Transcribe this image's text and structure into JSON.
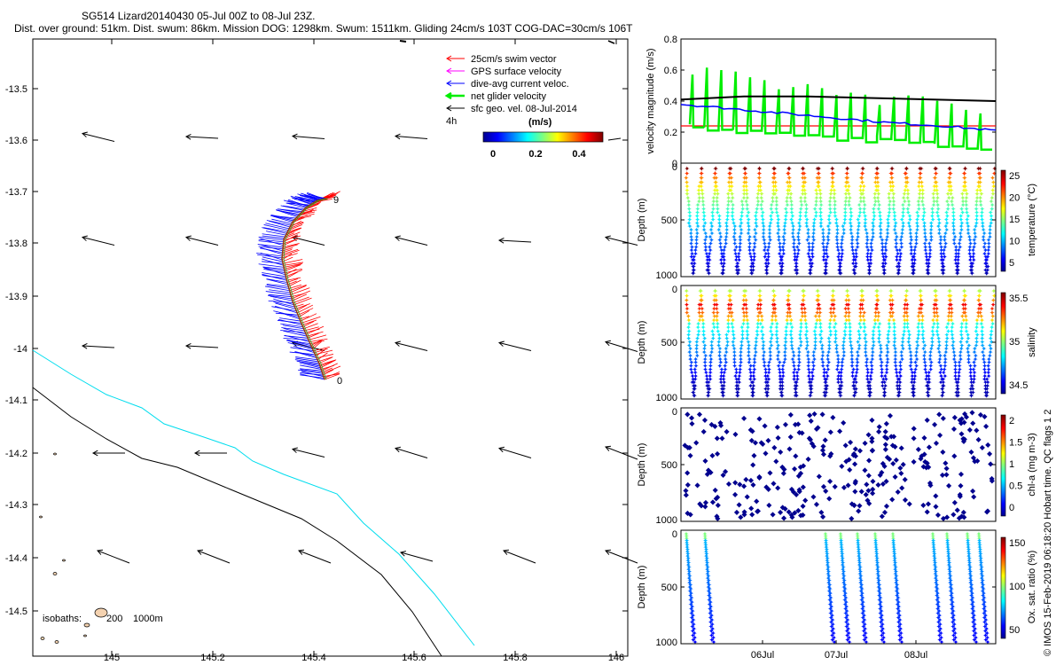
{
  "title_line1": "SG514 Lizard20140430 05-Jul 00Z to 08-Jul 23Z.",
  "title_line2": "Dist. over ground: 51km. Dist. swum: 86km. Mission DOG: 1298km. Swum: 1511km. Gliding 24cm/s 103T COG-DAC=30cm/s 106T",
  "copyright": "© IMOS 15-Feb-2019 06:18:20 Hobart time. QC flags 1  2",
  "map": {
    "xticks": [
      "145",
      "145.2",
      "145.4",
      "145.6",
      "145.8",
      "146"
    ],
    "yticks": [
      "-13.5",
      "-13.6",
      "-13.7",
      "-13.8",
      "-13.9",
      "-14",
      "-14.1",
      "-14.2",
      "-14.3",
      "-14.4",
      "-14.5"
    ],
    "legend": [
      {
        "label": "25cm/s swim vector",
        "color": "#ff0000"
      },
      {
        "label": "GPS surface velocity",
        "color": "#ff00ff"
      },
      {
        "label": "dive-avg current veloc.",
        "color": "#0000ff"
      },
      {
        "label": "net glider velocity",
        "color": "#00ee00"
      },
      {
        "label": "sfc geo. vel. 08-Jul-2014",
        "color": "#000000"
      }
    ],
    "colorbar_interval": "4h",
    "colorbar_unit": "(m/s)",
    "colorbar_ticks": [
      "0",
      "0.2",
      "0.4"
    ],
    "isobaths_label": "isobaths:",
    "isobath_200": "200",
    "isobath_1000": "1000m",
    "track_start_label": "0",
    "track_end_label": "9"
  },
  "chart_data": [
    {
      "type": "line",
      "name": "velocity",
      "ylabel": "velocity magnitude (m/s)",
      "ylim": [
        0,
        0.8
      ],
      "yticks": [
        "0",
        "0.2",
        "0.4",
        "0.6",
        "0.8"
      ],
      "series": [
        {
          "name": "25cm/s swim vector",
          "color": "#ff0000",
          "values": [
            0.24,
            0.24
          ]
        },
        {
          "name": "sfc geo. vel.",
          "color": "#000000",
          "values": [
            0.41,
            0.43,
            0.43,
            0.42,
            0.41,
            0.4
          ]
        },
        {
          "name": "dive-avg current veloc.",
          "color": "#0000ff",
          "values": [
            0.38,
            0.35,
            0.32,
            0.29,
            0.26,
            0.24,
            0.21
          ]
        }
      ]
    },
    {
      "type": "scatter",
      "name": "temperature",
      "ylabel": "Depth (m)",
      "colorbar_label": "temperature (°C)",
      "colorbar_ticks": [
        "25",
        "20",
        "15",
        "10",
        "5"
      ],
      "yticks": [
        "0",
        "500",
        "1000"
      ],
      "dives": 21
    },
    {
      "type": "scatter",
      "name": "salinity",
      "ylabel": "Depth (m)",
      "colorbar_label": "salinity",
      "colorbar_ticks": [
        "35.5",
        "35",
        "34.5"
      ],
      "yticks": [
        "0",
        "500",
        "1000"
      ],
      "dives": 21
    },
    {
      "type": "scatter",
      "name": "chl-a",
      "ylabel": "Depth (m)",
      "colorbar_label": "chl-a (mg m-3)",
      "colorbar_ticks": [
        "2",
        "1.5",
        "1",
        "0.5",
        "0"
      ],
      "yticks": [
        "0",
        "500",
        "1000"
      ]
    },
    {
      "type": "scatter",
      "name": "oxygen",
      "ylabel": "Depth (m)",
      "colorbar_label": "Ox. sat. ratio (%)",
      "colorbar_ticks": [
        "150",
        "100",
        "50"
      ],
      "yticks": [
        "0",
        "500",
        "1000"
      ],
      "xticks": [
        "06Jul",
        "07Jul",
        "08Jul"
      ]
    }
  ]
}
